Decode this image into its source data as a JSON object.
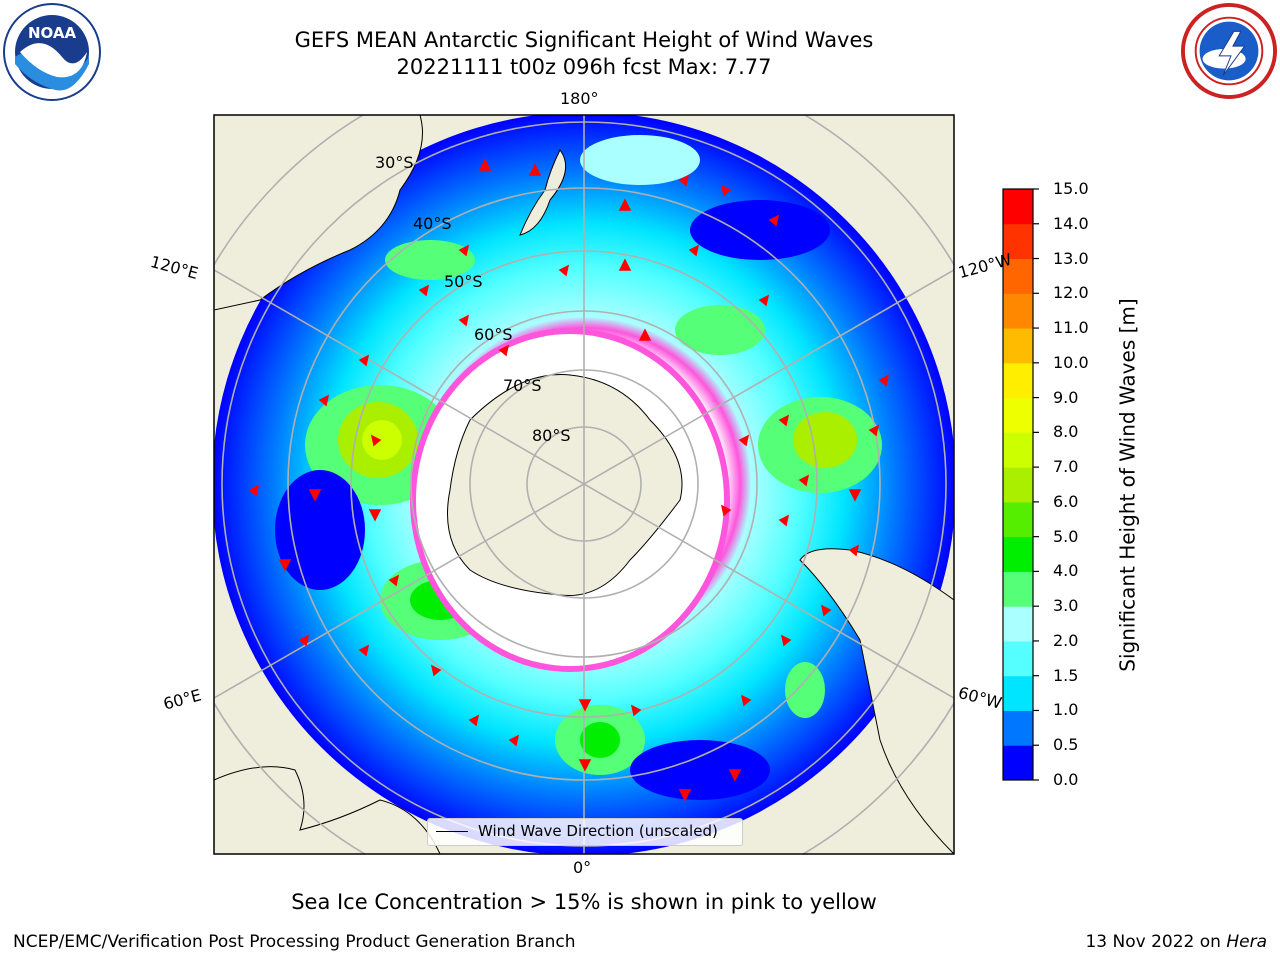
{
  "header": {
    "title_line1": "GEFS MEAN Antarctic Significant Height of Wind Waves",
    "title_line2": "20221111 t00z 096h fcst   Max: 7.77"
  },
  "logos": {
    "left": {
      "icon": "noaa-logo-icon",
      "text": "NOAA"
    },
    "right": {
      "icon": "national-weather-service-logo-icon"
    }
  },
  "map": {
    "longitude_labels": {
      "top": "180°",
      "upper_left": "120°E",
      "upper_right": "120°W",
      "lower_left": "60°E",
      "lower_right": "60°W",
      "bottom": "0°"
    },
    "latitude_labels": [
      "30°S",
      "40°S",
      "50°S",
      "60°S",
      "70°S",
      "80°S"
    ],
    "colors": {
      "ocean_low": "#0000ff",
      "land": "#efeedc",
      "ice_edge": "#ff55dd",
      "arrow": "#ff0000"
    }
  },
  "legend": {
    "label": "Wind Wave Direction (unscaled)"
  },
  "colorbar": {
    "title": "Significant Height of Wind Waves [m]",
    "ticks": [
      "15.0",
      "14.0",
      "13.0",
      "12.0",
      "11.0",
      "10.0",
      "9.0",
      "8.0",
      "7.0",
      "6.0",
      "5.0",
      "4.0",
      "3.0",
      "2.0",
      "1.5",
      "1.0",
      "0.5",
      "0.0"
    ],
    "colors": [
      "#0000ff",
      "#0077ff",
      "#00e5ff",
      "#55ffff",
      "#aaffff",
      "#55ff77",
      "#00ee00",
      "#55ee00",
      "#aaee00",
      "#ccff00",
      "#eeff00",
      "#ffee00",
      "#ffbb00",
      "#ff8800",
      "#ff6600",
      "#ff3300",
      "#ff0000"
    ]
  },
  "notes": {
    "sea_ice": "Sea Ice Concentration > 15% is shown in pink to yellow"
  },
  "footer": {
    "left": "NCEP/EMC/Verification Post Processing Product Generation Branch",
    "date": "13 Nov 2022 on",
    "machine": "Hera"
  }
}
